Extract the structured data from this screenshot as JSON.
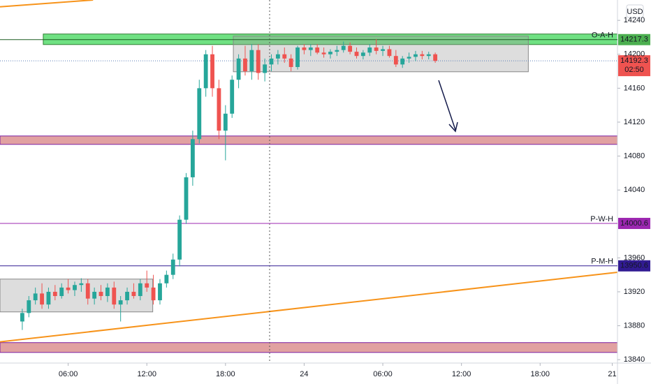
{
  "chart_data": {
    "type": "candlestick",
    "currency": "USD",
    "x": [
      2.5,
      3,
      3.5,
      4,
      4.5,
      5,
      5.5,
      6,
      6.5,
      7,
      7.5,
      8,
      8.5,
      9,
      9.5,
      10,
      10.5,
      11,
      11.5,
      12,
      12.5,
      13,
      13.5,
      14,
      14.5,
      15,
      15.5,
      16,
      16.5,
      17,
      17.5,
      18,
      18.5,
      19,
      19.5,
      20,
      20.5,
      21,
      21.5,
      22,
      22.5,
      23,
      23.5,
      24,
      24.5,
      25,
      25.5,
      26,
      26.5,
      27,
      27.5,
      28,
      28.5,
      29,
      29.5,
      30,
      30.5,
      31,
      31.5,
      32,
      32.5,
      33,
      33.5,
      34
    ],
    "open": [
      13885,
      13895,
      13910,
      13918,
      13905,
      13920,
      13915,
      13925,
      13922,
      13928,
      13930,
      13912,
      13920,
      13915,
      13925,
      13905,
      13910,
      13920,
      13915,
      13930,
      13925,
      13910,
      13930,
      13940,
      13958,
      14005,
      14055,
      14100,
      14160,
      14200,
      14160,
      14110,
      14130,
      14170,
      14195,
      14180,
      14205,
      14178,
      14188,
      14195,
      14200,
      14195,
      14185,
      14208,
      14205,
      14208,
      14202,
      14200,
      14203,
      14205,
      14210,
      14203,
      14198,
      14202,
      14208,
      14204,
      14206,
      14198,
      14188,
      14195,
      14197,
      14200,
      14198,
      14200
    ],
    "high": [
      13900,
      13915,
      13925,
      13930,
      13925,
      13928,
      13930,
      13935,
      13932,
      13936,
      13935,
      13925,
      13928,
      13930,
      13932,
      13915,
      13925,
      13930,
      13935,
      13945,
      13940,
      13935,
      13945,
      13965,
      14010,
      14060,
      14110,
      14170,
      14205,
      14210,
      14170,
      14140,
      14175,
      14200,
      14210,
      14212,
      14212,
      14195,
      14200,
      14205,
      14208,
      14200,
      14210,
      14212,
      14212,
      14212,
      14208,
      14206,
      14210,
      14215,
      14214,
      14208,
      14205,
      14212,
      14218,
      14210,
      14210,
      14205,
      14198,
      14202,
      14204,
      14204,
      14203,
      14202
    ],
    "low": [
      13875,
      13890,
      13905,
      13900,
      13900,
      13910,
      13912,
      13918,
      13915,
      13920,
      13905,
      13905,
      13910,
      13908,
      13900,
      13885,
      13905,
      13912,
      13910,
      13920,
      13905,
      13905,
      13925,
      13935,
      13950,
      14000,
      14045,
      14095,
      14150,
      14150,
      14100,
      14075,
      14125,
      14160,
      14175,
      14170,
      14170,
      14168,
      14180,
      14188,
      14190,
      14180,
      14182,
      14200,
      14198,
      14200,
      14196,
      14195,
      14198,
      14202,
      14200,
      14195,
      14194,
      14198,
      14200,
      14198,
      14196,
      14185,
      14184,
      14190,
      14192,
      14194,
      14194,
      14190
    ],
    "close": [
      13895,
      13910,
      13918,
      13905,
      13920,
      13915,
      13925,
      13922,
      13928,
      13930,
      13912,
      13920,
      13915,
      13925,
      13905,
      13910,
      13920,
      13915,
      13930,
      13925,
      13910,
      13930,
      13940,
      13958,
      14005,
      14055,
      14100,
      14160,
      14200,
      14160,
      14110,
      14130,
      14170,
      14195,
      14180,
      14205,
      14178,
      14188,
      14195,
      14200,
      14195,
      14185,
      14208,
      14205,
      14208,
      14202,
      14200,
      14203,
      14205,
      14210,
      14203,
      14198,
      14202,
      14208,
      14204,
      14206,
      14198,
      14188,
      14195,
      14197,
      14200,
      14198,
      14200,
      14192.3
    ],
    "up_color": "#26a69a",
    "down_color": "#ef5350",
    "xlim": [
      0.8,
      47.9
    ],
    "xticks": [
      {
        "value": 6,
        "label": "06:00"
      },
      {
        "value": 12,
        "label": "12:00"
      },
      {
        "value": 18,
        "label": "18:00"
      },
      24,
      {
        "value": 30,
        "label": "06:00"
      },
      {
        "value": 36,
        "label": "12:00"
      },
      {
        "value": 42,
        "label": "18:00"
      },
      {
        "value": 47.5,
        "label": "21"
      }
    ],
    "ylim": [
      13836,
      14264
    ],
    "yticks": [
      13840,
      13880,
      13920,
      13960,
      14040,
      14080,
      14120,
      14160,
      14200,
      14240
    ],
    "levels": [
      {
        "name": "O-A-H",
        "value": 14217.3,
        "color": "#4caf50"
      },
      {
        "name": "P-W-H",
        "value": 14000.6,
        "color": "#9c27b0"
      },
      {
        "name": "P-M-H",
        "value": 13950.6,
        "color": "#311b92"
      }
    ],
    "current_price": {
      "value": 14192.3,
      "countdown": "02:50",
      "color": "#ef5350"
    },
    "zones": [
      {
        "x": [
          4.1,
          47.9
        ],
        "range": [
          14211.5,
          14223.9
        ],
        "color": "#4cd964"
      },
      {
        "x": [
          0.8,
          47.9
        ],
        "range": [
          14093.8,
          14103.7
        ],
        "color": "#d98a8a"
      },
      {
        "x": [
          0.8,
          47.9
        ],
        "range": [
          13848.5,
          13860.1
        ],
        "color": "#d98a8a"
      }
    ],
    "boxes": [
      {
        "x": [
          18.6,
          41.1
        ],
        "y": [
          14179.4,
          14221.4
        ]
      },
      {
        "x": [
          0.8,
          12.45
        ],
        "y": [
          13896.3,
          13935
        ]
      }
    ],
    "trendlines": [
      {
        "x": [
          0.8,
          7.9
        ],
        "y": [
          14256,
          14264
        ],
        "color": "#f7931a"
      },
      {
        "x": [
          0.8,
          47.9
        ],
        "y": [
          13861,
          13943
        ],
        "color": "#f7931a"
      }
    ]
  }
}
